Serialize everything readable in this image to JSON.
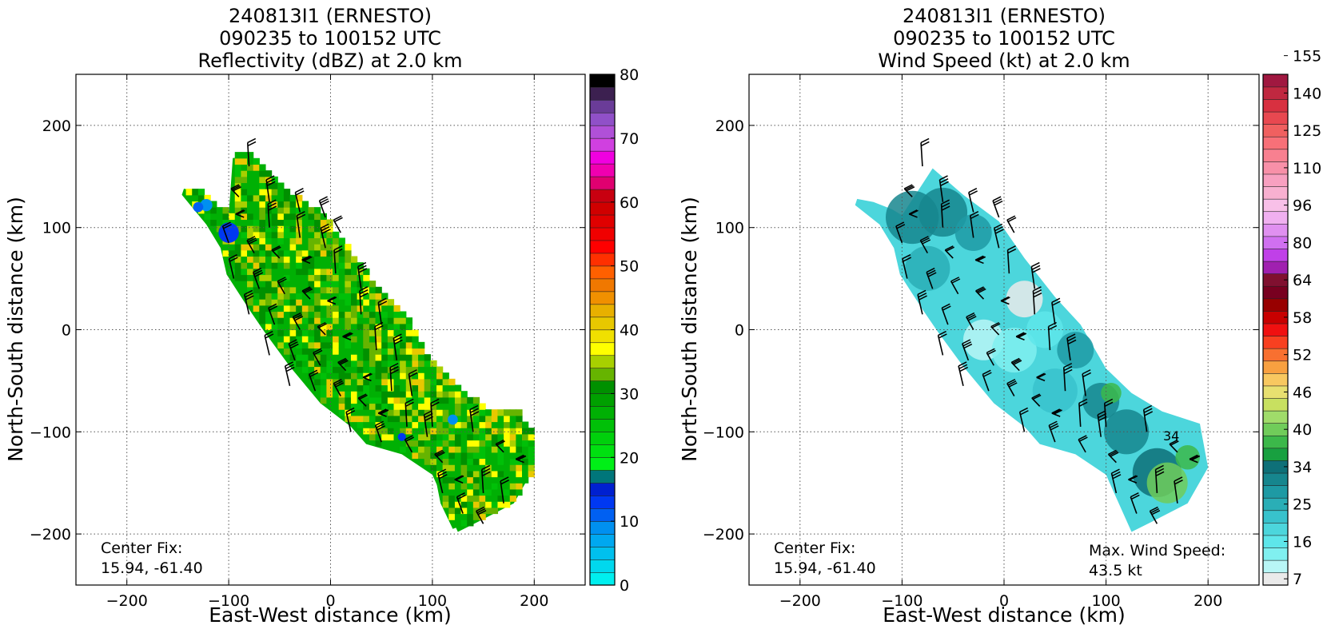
{
  "chart_data": [
    {
      "type": "heatmap",
      "title": [
        "240813I1 (ERNESTO)",
        "090235 to 100152 UTC",
        "Reflectivity (dBZ) at 2.0 km"
      ],
      "xlabel": "East-West distance (km)",
      "ylabel": "North-South distance (km)",
      "xlim": [
        -250,
        250
      ],
      "ylim": [
        -250,
        250
      ],
      "xticks": [
        -200,
        -100,
        0,
        100,
        200
      ],
      "yticks": [
        -200,
        -100,
        0,
        100,
        200
      ],
      "xtick_labels": [
        "−200",
        "−100",
        "0",
        "100",
        "200"
      ],
      "ytick_labels": [
        "−200",
        "−100",
        "0",
        "100",
        "200"
      ],
      "grid": true,
      "annotation": [
        "Center Fix:",
        "15.94, -61.40"
      ],
      "colorbar": {
        "min": 0,
        "max": 80,
        "tick_values": [
          0,
          10,
          20,
          30,
          40,
          50,
          60,
          70,
          80
        ],
        "tick_labels": [
          "0",
          "10",
          "20",
          "30",
          "40",
          "50",
          "60",
          "70",
          "80"
        ],
        "colors": [
          "#00efef",
          "#00d8ee",
          "#00c0ee",
          "#00a8f0",
          "#0090f0",
          "#0060f2",
          "#0038f2",
          "#0020d0",
          "#00767a",
          "#00ef17",
          "#00e010",
          "#00d00c",
          "#00c008",
          "#00b004",
          "#00a000",
          "#009000",
          "#66b400",
          "#a8d000",
          "#ffff00",
          "#f0e000",
          "#e8c800",
          "#e8b000",
          "#f09000",
          "#f07800",
          "#ff6000",
          "#ff3000",
          "#ff0000",
          "#f00000",
          "#e00000",
          "#d00000",
          "#c80010",
          "#e00070",
          "#f000b0",
          "#f000e0",
          "#d040e0",
          "#b050d8",
          "#9050c8",
          "#6a3c98",
          "#3c2050",
          "#000000"
        ]
      },
      "field": {
        "polygons": [
          [
            [
              -144,
              138
            ],
            [
              -128,
              135
            ],
            [
              -110,
              118
            ],
            [
              -100,
              112
            ],
            [
              -96,
              168
            ],
            [
              -78,
              170
            ],
            [
              -40,
              132
            ],
            [
              -5,
              106
            ],
            [
              20,
              70
            ],
            [
              50,
              32
            ],
            [
              75,
              5
            ],
            [
              100,
              -38
            ],
            [
              125,
              -62
            ],
            [
              155,
              -80
            ],
            [
              192,
              -92
            ],
            [
              200,
              -135
            ],
            [
              180,
              -170
            ],
            [
              145,
              -188
            ],
            [
              125,
              -198
            ],
            [
              108,
              -160
            ],
            [
              100,
              -142
            ],
            [
              70,
              -122
            ],
            [
              35,
              -112
            ],
            [
              20,
              -95
            ],
            [
              -10,
              -72
            ],
            [
              -40,
              -36
            ],
            [
              -65,
              -2
            ],
            [
              -80,
              20
            ],
            [
              -102,
              54
            ],
            [
              -108,
              80
            ],
            [
              -122,
              103
            ],
            [
              -146,
              132
            ]
          ],
          [
            [
              100,
              -70
            ],
            [
              125,
              -60
            ],
            [
              150,
              -78
            ],
            [
              180,
              -80
            ],
            [
              200,
              -105
            ],
            [
              198,
              -140
            ],
            [
              175,
              -168
            ],
            [
              140,
              -188
            ],
            [
              120,
              -195
            ],
            [
              108,
              -170
            ],
            [
              102,
              -140
            ]
          ]
        ],
        "colors": [
          "#00b004",
          "#009000",
          "#00c008",
          "#66b400",
          "#a8d000",
          "#ffff00",
          "#e8c800"
        ],
        "patches": [
          {
            "x": -100,
            "y": 95,
            "r": 10,
            "color": "#0038f2"
          },
          {
            "x": -122,
            "y": 122,
            "r": 6,
            "color": "#0090f0"
          },
          {
            "x": -130,
            "y": 120,
            "r": 5,
            "color": "#0060f2"
          },
          {
            "x": 120,
            "y": -88,
            "r": 5,
            "color": "#0090f0"
          },
          {
            "x": 70,
            "y": -105,
            "r": 4,
            "color": "#0038f2"
          }
        ]
      },
      "wind_barbs": {
        "speed_kt": 25,
        "points": [
          [
            -80,
            160
          ],
          [
            -60,
            125
          ],
          [
            -30,
            115
          ],
          [
            -5,
            110
          ],
          [
            10,
            95
          ],
          [
            -90,
            130
          ],
          [
            -85,
            110
          ],
          [
            -60,
            100
          ],
          [
            -30,
            90
          ],
          [
            -5,
            80
          ],
          [
            -100,
            85
          ],
          [
            -75,
            75
          ],
          [
            -50,
            70
          ],
          [
            -20,
            65
          ],
          [
            5,
            55
          ],
          [
            30,
            40
          ],
          [
            -95,
            50
          ],
          [
            -70,
            40
          ],
          [
            -45,
            35
          ],
          [
            -20,
            30
          ],
          [
            5,
            25
          ],
          [
            30,
            15
          ],
          [
            50,
            5
          ],
          [
            -80,
            15
          ],
          [
            -55,
            5
          ],
          [
            -30,
            0
          ],
          [
            -5,
            -5
          ],
          [
            20,
            -10
          ],
          [
            45,
            -20
          ],
          [
            65,
            -30
          ],
          [
            -60,
            -25
          ],
          [
            -35,
            -30
          ],
          [
            -10,
            -35
          ],
          [
            15,
            -40
          ],
          [
            40,
            -50
          ],
          [
            60,
            -60
          ],
          [
            80,
            -65
          ],
          [
            -40,
            -55
          ],
          [
            -15,
            -60
          ],
          [
            10,
            -65
          ],
          [
            35,
            -75
          ],
          [
            55,
            -85
          ],
          [
            75,
            -95
          ],
          [
            95,
            -105
          ],
          [
            20,
            -100
          ],
          [
            50,
            -110
          ],
          [
            80,
            -120
          ],
          [
            110,
            -130
          ],
          [
            130,
            -150
          ],
          [
            150,
            -160
          ],
          [
            170,
            -170
          ],
          [
            110,
            -160
          ],
          [
            130,
            -180
          ],
          [
            150,
            -190
          ],
          [
            170,
            -120
          ],
          [
            190,
            -130
          ],
          [
            100,
            -95
          ],
          [
            140,
            -100
          ]
        ]
      }
    },
    {
      "type": "heatmap",
      "title": [
        "240813I1 (ERNESTO)",
        "090235 to 100152 UTC",
        "Wind Speed (kt) at 2.0 km"
      ],
      "xlabel": "East-West distance (km)",
      "ylabel": "North-South distance (km)",
      "xlim": [
        -250,
        250
      ],
      "ylim": [
        -250,
        250
      ],
      "xticks": [
        -200,
        -100,
        0,
        100,
        200
      ],
      "yticks": [
        -200,
        -100,
        0,
        100,
        200
      ],
      "xtick_labels": [
        "−200",
        "−100",
        "0",
        "100",
        "200"
      ],
      "ytick_labels": [
        "−200",
        "−100",
        "0",
        "100",
        "200"
      ],
      "grid": true,
      "annotation": [
        "Center Fix:",
        "15.94, -61.40"
      ],
      "annotation2": [
        "Max. Wind Speed:",
        "43.5 kt"
      ],
      "contour_label": "34",
      "colorbar": {
        "tick_labels": [
          "7",
          "16",
          "25",
          "34",
          "40",
          "46",
          "52",
          "58",
          "64",
          "80",
          "96",
          "110",
          "125",
          "140",
          "155"
        ],
        "colors": [
          "#eaeaea",
          "#b8f6f6",
          "#80f0f0",
          "#5ee6ea",
          "#4cd6dc",
          "#38c2cc",
          "#2aaeb6",
          "#1e9aa4",
          "#16868e",
          "#0e7078",
          "#18a040",
          "#3cb84a",
          "#70cc5a",
          "#a0dc6a",
          "#c8e060",
          "#e8e070",
          "#f8c860",
          "#f8a040",
          "#f87030",
          "#f84020",
          "#f01010",
          "#c80000",
          "#980000",
          "#780020",
          "#801030",
          "#a020b0",
          "#c040e8",
          "#d070f0",
          "#e090f0",
          "#f0b0f0",
          "#f8c0e8",
          "#f8b0d0",
          "#f8a0c0",
          "#f890a8",
          "#f88090",
          "#f87078",
          "#f06060",
          "#e84850",
          "#d83040",
          "#c02840",
          "#a01840"
        ]
      },
      "field": {
        "polygons": [
          [
            [
              -144,
              128
            ],
            [
              -128,
              125
            ],
            [
              -110,
              118
            ],
            [
              -100,
              112
            ],
            [
              -70,
              158
            ],
            [
              -40,
              132
            ],
            [
              -5,
              106
            ],
            [
              20,
              70
            ],
            [
              50,
              32
            ],
            [
              75,
              5
            ],
            [
              100,
              -38
            ],
            [
              125,
              -62
            ],
            [
              155,
              -80
            ],
            [
              192,
              -92
            ],
            [
              200,
              -135
            ],
            [
              180,
              -170
            ],
            [
              145,
              -188
            ],
            [
              125,
              -198
            ],
            [
              108,
              -160
            ],
            [
              100,
              -142
            ],
            [
              70,
              -122
            ],
            [
              35,
              -112
            ],
            [
              20,
              -95
            ],
            [
              -10,
              -72
            ],
            [
              -40,
              -36
            ],
            [
              -65,
              -2
            ],
            [
              -80,
              20
            ],
            [
              -102,
              54
            ],
            [
              -108,
              80
            ],
            [
              -122,
              103
            ],
            [
              -146,
              122
            ]
          ]
        ],
        "patches": [
          {
            "x": -90,
            "y": 110,
            "r": 26,
            "color": "#16868e"
          },
          {
            "x": -60,
            "y": 115,
            "r": 24,
            "color": "#16868e"
          },
          {
            "x": -30,
            "y": 95,
            "r": 18,
            "color": "#1e9aa4"
          },
          {
            "x": -75,
            "y": 60,
            "r": 22,
            "color": "#2aaeb6"
          },
          {
            "x": 20,
            "y": 30,
            "r": 18,
            "color": "#eaeaea"
          },
          {
            "x": -20,
            "y": -10,
            "r": 20,
            "color": "#b8f6f6"
          },
          {
            "x": 10,
            "y": -20,
            "r": 22,
            "color": "#80f0f0"
          },
          {
            "x": 40,
            "y": 0,
            "r": 18,
            "color": "#5ee6ea"
          },
          {
            "x": 70,
            "y": -20,
            "r": 18,
            "color": "#1e9aa4"
          },
          {
            "x": 50,
            "y": -60,
            "r": 22,
            "color": "#38c2cc"
          },
          {
            "x": 95,
            "y": -70,
            "r": 18,
            "color": "#16868e"
          },
          {
            "x": 120,
            "y": -100,
            "r": 22,
            "color": "#16868e"
          },
          {
            "x": 150,
            "y": -140,
            "r": 24,
            "color": "#0e7078"
          },
          {
            "x": 160,
            "y": -150,
            "r": 20,
            "color": "#70cc5a"
          },
          {
            "x": 180,
            "y": -125,
            "r": 12,
            "color": "#3cb84a"
          },
          {
            "x": 105,
            "y": -62,
            "r": 10,
            "color": "#3cb84a"
          }
        ]
      },
      "wind_barbs": {
        "speed_kt": 25,
        "points": [
          [
            -80,
            160
          ],
          [
            -60,
            125
          ],
          [
            -30,
            115
          ],
          [
            -5,
            110
          ],
          [
            10,
            95
          ],
          [
            -90,
            130
          ],
          [
            -85,
            110
          ],
          [
            -60,
            100
          ],
          [
            -30,
            90
          ],
          [
            -5,
            80
          ],
          [
            -100,
            85
          ],
          [
            -75,
            75
          ],
          [
            -50,
            70
          ],
          [
            -20,
            65
          ],
          [
            5,
            55
          ],
          [
            30,
            40
          ],
          [
            -95,
            50
          ],
          [
            -70,
            40
          ],
          [
            -45,
            35
          ],
          [
            -20,
            30
          ],
          [
            5,
            25
          ],
          [
            30,
            15
          ],
          [
            50,
            5
          ],
          [
            -80,
            15
          ],
          [
            -55,
            5
          ],
          [
            -30,
            0
          ],
          [
            -5,
            -5
          ],
          [
            20,
            -10
          ],
          [
            45,
            -20
          ],
          [
            65,
            -30
          ],
          [
            -60,
            -25
          ],
          [
            -35,
            -30
          ],
          [
            -10,
            -35
          ],
          [
            15,
            -40
          ],
          [
            40,
            -50
          ],
          [
            60,
            -60
          ],
          [
            80,
            -65
          ],
          [
            -40,
            -55
          ],
          [
            -15,
            -60
          ],
          [
            10,
            -65
          ],
          [
            35,
            -75
          ],
          [
            55,
            -85
          ],
          [
            75,
            -95
          ],
          [
            95,
            -105
          ],
          [
            20,
            -100
          ],
          [
            50,
            -110
          ],
          [
            80,
            -120
          ],
          [
            110,
            -130
          ],
          [
            130,
            -150
          ],
          [
            150,
            -160
          ],
          [
            170,
            -170
          ],
          [
            110,
            -160
          ],
          [
            130,
            -180
          ],
          [
            150,
            -190
          ],
          [
            170,
            -120
          ],
          [
            190,
            -130
          ],
          [
            100,
            -95
          ],
          [
            140,
            -100
          ]
        ]
      }
    }
  ]
}
